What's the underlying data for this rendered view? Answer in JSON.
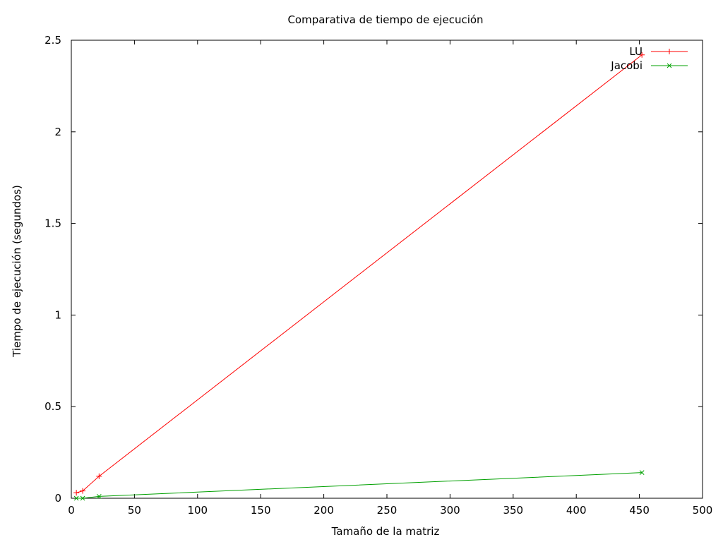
{
  "chart_data": {
    "type": "line",
    "title": "Comparativa de tiempo de ejecución",
    "xlabel": "Tamaño de la matriz",
    "ylabel": "Tiempo de ejecución (segundos)",
    "xlim": [
      0,
      500
    ],
    "ylim": [
      0,
      2.5
    ],
    "xticks": [
      0,
      50,
      100,
      150,
      200,
      250,
      300,
      350,
      400,
      450,
      500
    ],
    "yticks": [
      0,
      0.5,
      1,
      1.5,
      2,
      2.5
    ],
    "xtick_labels": [
      "0",
      "50",
      "100",
      "150",
      "200",
      "250",
      "300",
      "350",
      "400",
      "450",
      "500"
    ],
    "ytick_labels": [
      "0",
      "0.5",
      "1",
      "1.5",
      "2",
      "2.5"
    ],
    "grid": false,
    "legend_position": "top-right",
    "series": [
      {
        "name": "LU",
        "color": "#ff0000",
        "marker": "plus",
        "x": [
          4,
          9,
          22,
          452
        ],
        "y": [
          0.03,
          0.04,
          0.12,
          2.42
        ]
      },
      {
        "name": "Jacobi",
        "color": "#00a000",
        "marker": "cross",
        "x": [
          4,
          9,
          22,
          452
        ],
        "y": [
          0.0,
          0.0,
          0.01,
          0.14
        ]
      }
    ]
  }
}
